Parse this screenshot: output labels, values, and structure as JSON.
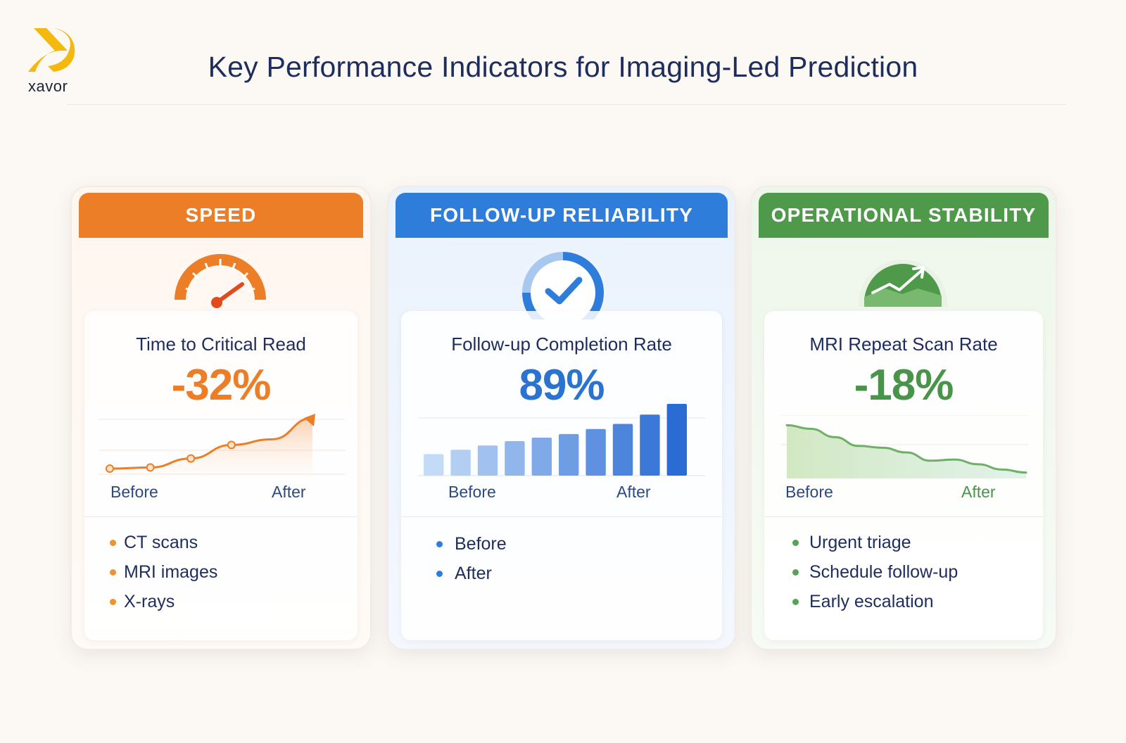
{
  "brand": {
    "name": "xavor",
    "accent": "#f5b80e"
  },
  "title": "Key Performance Indicators for Imaging-Led Prediction",
  "cards": [
    {
      "header": "SPEED",
      "icon": "speedometer-icon",
      "metric_label": "Time to Critical Read",
      "metric_value": "-32%",
      "x_start": "Before",
      "x_end": "After",
      "bullets": [
        "CT scans",
        "MRI images",
        "X-rays"
      ],
      "color": "#ec7e27"
    },
    {
      "header": "FOLLOW-UP RELIABILITY",
      "icon": "check-circle-icon",
      "metric_label": "Follow-up Completion Rate",
      "metric_value": "89%",
      "x_start": "Before",
      "x_end": "After",
      "bullets": [
        "Before",
        "After"
      ],
      "color": "#2f7ddb"
    },
    {
      "header": "OPERATIONAL STABILITY",
      "icon": "trend-gauge-icon",
      "metric_label": "MRI Repeat Scan Rate",
      "metric_value": "-18%",
      "x_start": "Before",
      "x_end": "After",
      "bullets": [
        "Urgent triage",
        "Schedule follow-up",
        "Early escalation"
      ],
      "color": "#4f9a4a"
    }
  ],
  "chart_data": [
    {
      "type": "line",
      "title": "Time to Critical Read",
      "x": [
        0,
        1,
        2,
        3,
        4,
        5
      ],
      "values": [
        10,
        12,
        28,
        52,
        62,
        100
      ],
      "markers": [
        0,
        1,
        2,
        3
      ],
      "xlabel": "",
      "ylabel": "",
      "x_tick_labels": [
        "Before",
        "After"
      ],
      "ylim": [
        0,
        100
      ],
      "fill": true,
      "arrow_end": true
    },
    {
      "type": "bar",
      "title": "Follow-up Completion Rate",
      "categories": [
        "1",
        "2",
        "3",
        "4",
        "5",
        "6",
        "7",
        "8",
        "9",
        "10"
      ],
      "values": [
        30,
        36,
        42,
        48,
        53,
        58,
        65,
        72,
        85,
        100
      ],
      "x_tick_labels": [
        "Before",
        "After"
      ],
      "ylim": [
        0,
        100
      ]
    },
    {
      "type": "area",
      "title": "MRI Repeat Scan Rate",
      "x": [
        0,
        1,
        2,
        3,
        4,
        5,
        6,
        7,
        8,
        9,
        10
      ],
      "values": [
        90,
        84,
        70,
        55,
        52,
        44,
        30,
        32,
        24,
        15,
        10
      ],
      "x_tick_labels": [
        "Before",
        "After"
      ],
      "ylim": [
        0,
        100
      ]
    }
  ]
}
